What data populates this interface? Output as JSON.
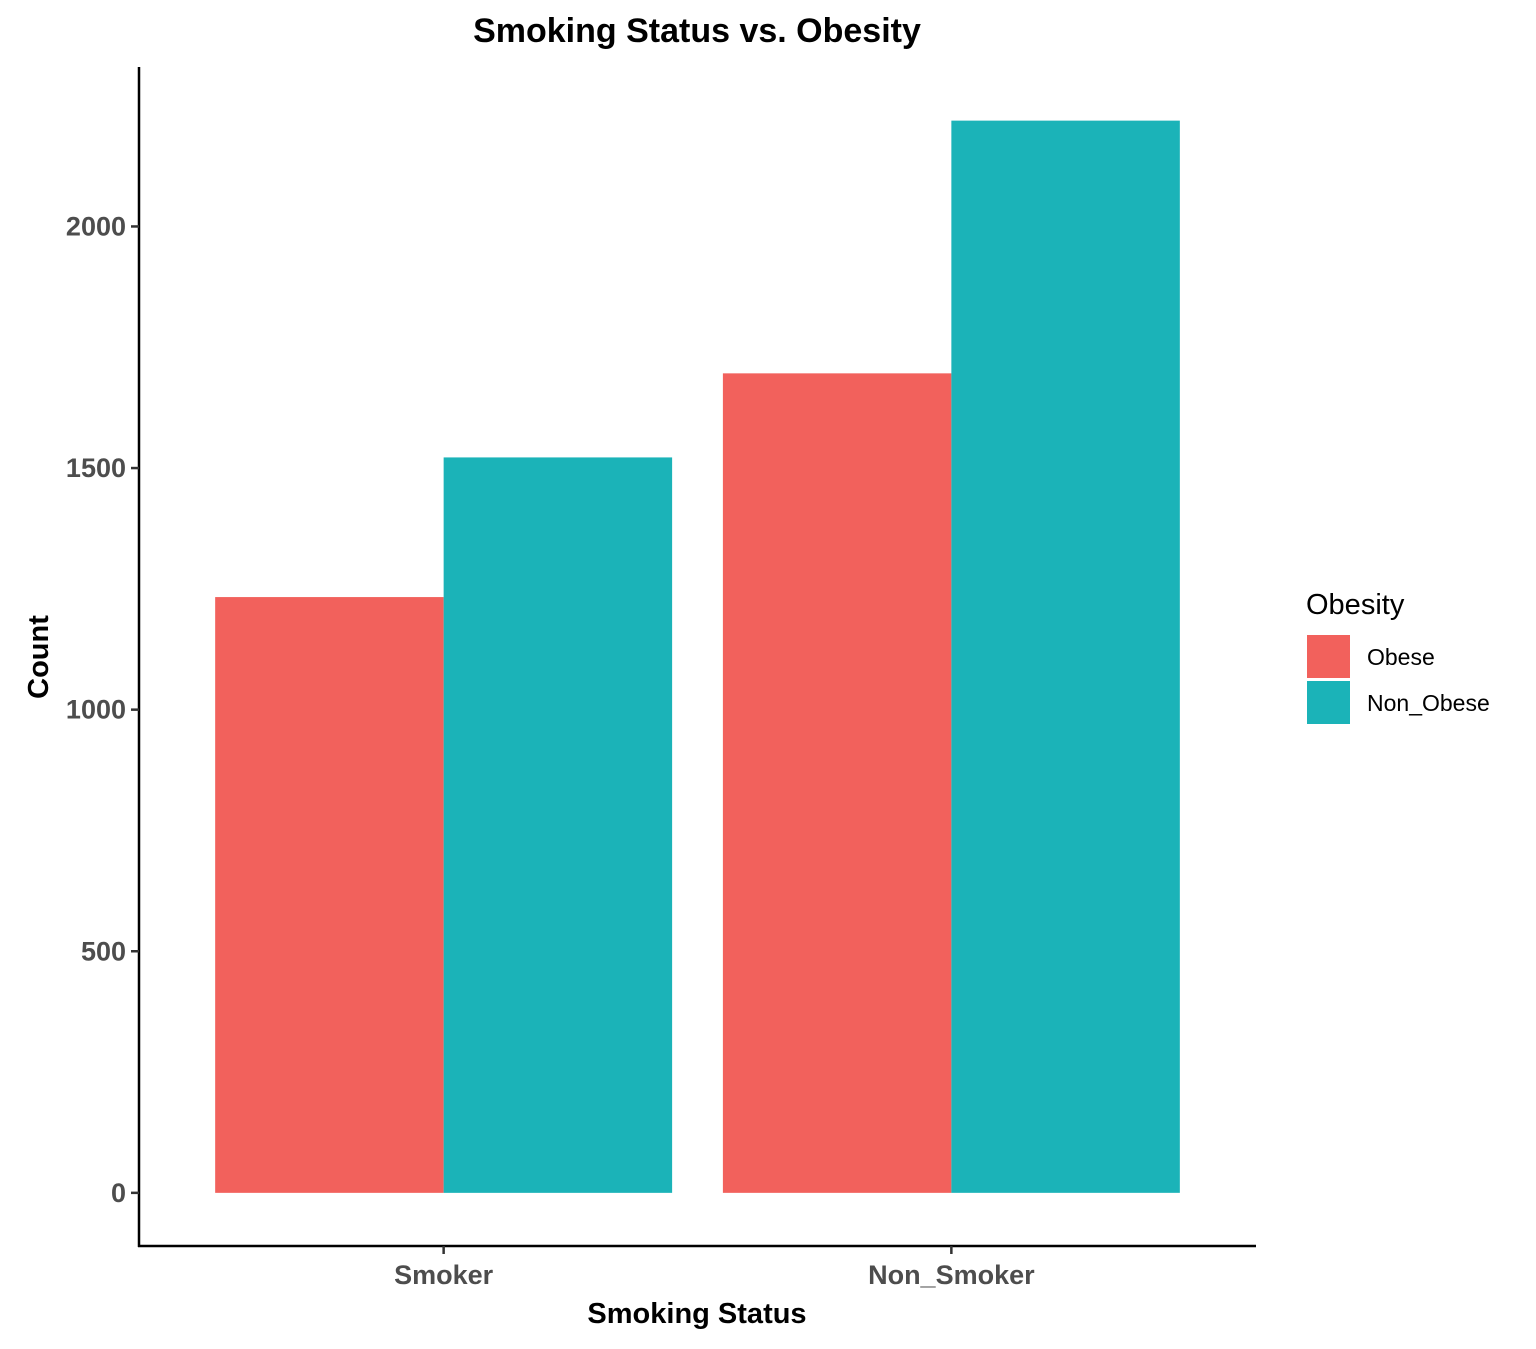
{
  "chart_data": {
    "type": "bar",
    "title": "Smoking Status vs. Obesity",
    "xlabel": "Smoking Status",
    "ylabel": "Count",
    "categories": [
      "Smoker",
      "Non_Smoker"
    ],
    "series": [
      {
        "name": "Obese",
        "color": "#F2615C",
        "values": [
          1233,
          1696
        ]
      },
      {
        "name": "Non_Obese",
        "color": "#1BB3B8",
        "values": [
          1522,
          2219
        ]
      }
    ],
    "ylim": [
      -110,
      2330
    ],
    "yticks": [
      0,
      500,
      1000,
      1500,
      2000
    ],
    "grid": false,
    "legend": {
      "title": "Obesity",
      "position": "right"
    }
  }
}
